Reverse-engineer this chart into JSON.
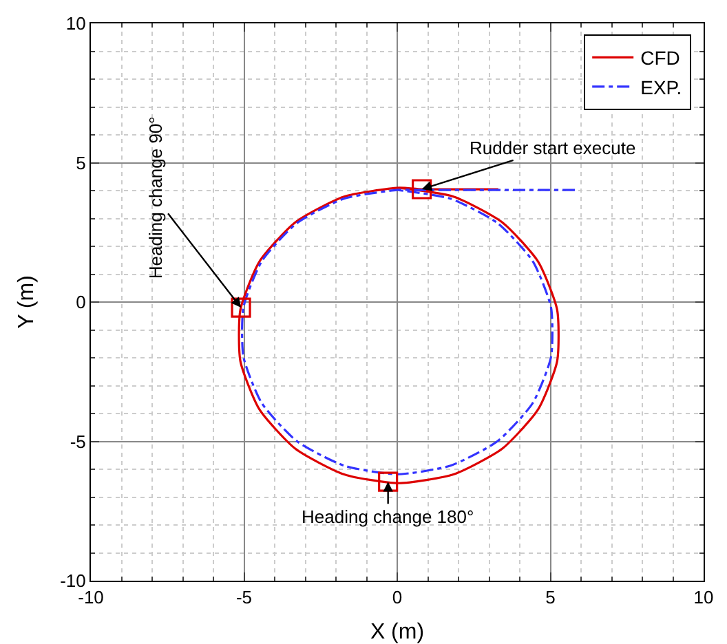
{
  "chart_data": {
    "type": "line",
    "xlabel": "X (m)",
    "ylabel": "Y (m)",
    "xlim": [
      -10,
      10
    ],
    "ylim": [
      -10,
      10
    ],
    "xticks": [
      -10,
      -5,
      0,
      5,
      10
    ],
    "yticks": [
      -10,
      -5,
      0,
      5,
      10
    ],
    "grid": true,
    "legend": "top right",
    "series": [
      {
        "name": "CFD",
        "color": "#dd0000",
        "line_style": "solid",
        "x": [
          3.3,
          0.8,
          0.05,
          -1.75,
          -3.33,
          -4.5,
          -5.12,
          -5.12,
          -4.5,
          -3.33,
          -1.75,
          0.05,
          1.85,
          3.43,
          4.6,
          5.22,
          5.22,
          4.6,
          3.43,
          1.85,
          0.05
        ],
        "values": [
          4.05,
          4.05,
          4.1,
          3.78,
          2.86,
          1.45,
          -0.28,
          -2.12,
          -3.85,
          -5.26,
          -6.18,
          -6.5,
          -6.18,
          -5.26,
          -3.85,
          -2.12,
          -0.28,
          1.45,
          2.86,
          3.78,
          4.1
        ]
      },
      {
        "name": "EXP.",
        "color": "#3333ff",
        "line_style": "dashdot",
        "x": [
          5.8,
          0.8,
          0,
          -1.74,
          -3.28,
          -4.42,
          -5.02,
          -5.02,
          -4.42,
          -3.28,
          -1.74,
          0,
          1.74,
          3.28,
          4.42,
          5.02,
          5.02,
          4.42,
          3.28,
          1.74,
          0
        ],
        "values": [
          4.02,
          4.02,
          4.02,
          3.71,
          2.83,
          1.47,
          -0.19,
          -1.97,
          -3.63,
          -4.99,
          -5.87,
          -6.18,
          -5.87,
          -4.99,
          -3.63,
          -1.97,
          -0.19,
          1.47,
          2.83,
          3.71,
          4.02
        ]
      },
      {
        "type": "scatter",
        "color": "#dd0000",
        "marker": "square",
        "x": [
          0.8,
          -5.1,
          -0.3
        ],
        "values": [
          4.05,
          -0.2,
          -6.45
        ]
      }
    ],
    "annotations": [
      {
        "text": "Rudder start execute",
        "x": 0.8,
        "y": 4.05
      },
      {
        "text": "Heading change 90°",
        "x": -5.1,
        "y": -0.2
      },
      {
        "text": "Heading change 180°",
        "x": -0.3,
        "y": -6.45
      }
    ]
  }
}
